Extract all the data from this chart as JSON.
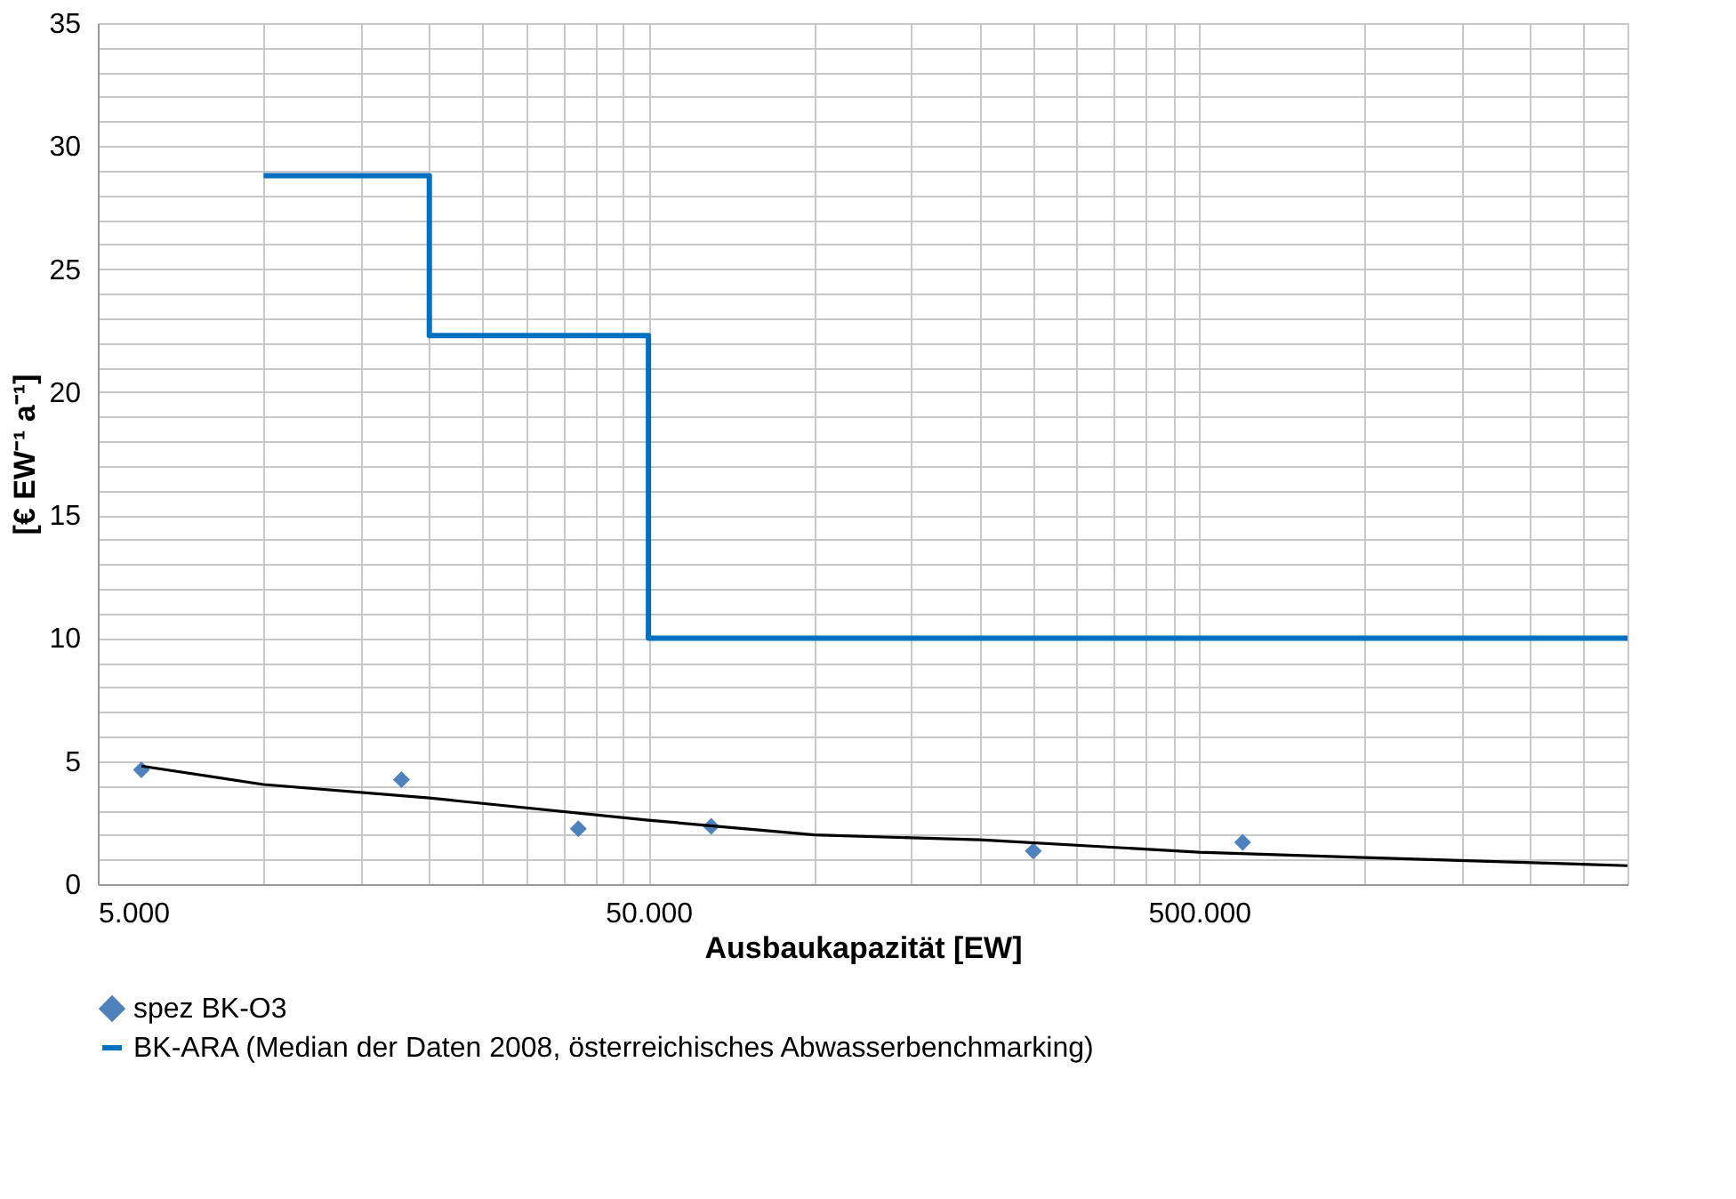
{
  "chart_data": {
    "type": "scatter",
    "xlabel": "Ausbaukapazität [EW]",
    "ylabel": "[€ EW⁻¹ a⁻¹]",
    "log": "x",
    "grid": true,
    "legend": "bottom",
    "xlim": [
      5000,
      3000000
    ],
    "ylim": [
      0,
      35
    ],
    "xticks": [
      {
        "value": 5000,
        "label": "5.000"
      },
      {
        "value": 10000,
        "label": null
      },
      {
        "value": 15000,
        "label": null
      },
      {
        "value": 20000,
        "label": null
      },
      {
        "value": 25000,
        "label": null
      },
      {
        "value": 30000,
        "label": null
      },
      {
        "value": 35000,
        "label": null
      },
      {
        "value": 40000,
        "label": null
      },
      {
        "value": 45000,
        "label": null
      },
      {
        "value": 50000,
        "label": "50.000"
      },
      {
        "value": 100000,
        "label": null
      },
      {
        "value": 150000,
        "label": null
      },
      {
        "value": 200000,
        "label": null
      },
      {
        "value": 250000,
        "label": null
      },
      {
        "value": 300000,
        "label": null
      },
      {
        "value": 350000,
        "label": null
      },
      {
        "value": 400000,
        "label": null
      },
      {
        "value": 450000,
        "label": null
      },
      {
        "value": 500000,
        "label": "500.000"
      },
      {
        "value": 1000000,
        "label": null
      },
      {
        "value": 1500000,
        "label": null
      },
      {
        "value": 2000000,
        "label": null
      },
      {
        "value": 2500000,
        "label": null
      },
      {
        "value": 3000000,
        "label": null
      }
    ],
    "yticks": [
      0,
      {
        "value": 1,
        "label": null
      },
      {
        "value": 2,
        "label": null
      },
      {
        "value": 3,
        "label": null
      },
      {
        "value": 4,
        "label": null
      },
      5,
      {
        "value": 6,
        "label": null
      },
      {
        "value": 7,
        "label": null
      },
      {
        "value": 8,
        "label": null
      },
      {
        "value": 9,
        "label": null
      },
      10,
      {
        "value": 11,
        "label": null
      },
      {
        "value": 12,
        "label": null
      },
      {
        "value": 13,
        "label": null
      },
      {
        "value": 14,
        "label": null
      },
      15,
      {
        "value": 16,
        "label": null
      },
      {
        "value": 17,
        "label": null
      },
      {
        "value": 18,
        "label": null
      },
      {
        "value": 19,
        "label": null
      },
      20,
      {
        "value": 21,
        "label": null
      },
      {
        "value": 22,
        "label": null
      },
      {
        "value": 23,
        "label": null
      },
      {
        "value": 24,
        "label": null
      },
      25,
      {
        "value": 26,
        "label": null
      },
      {
        "value": 27,
        "label": null
      },
      {
        "value": 28,
        "label": null
      },
      {
        "value": 29,
        "label": null
      },
      30,
      {
        "value": 31,
        "label": null
      },
      {
        "value": 32,
        "label": null
      },
      {
        "value": 33,
        "label": null
      },
      {
        "value": 34,
        "label": null
      },
      35
    ],
    "series": [
      {
        "name": "spez BK-O3",
        "type": "scatter",
        "marker": "diamond",
        "color": "#4f81bd",
        "x": [
          6000,
          17800,
          37300,
          65000,
          250000,
          600000
        ],
        "values": [
          4.65,
          4.25,
          2.25,
          2.35,
          1.35,
          1.7
        ]
      },
      {
        "name": "BK-ARA (Median der Daten 2008, österreichisches Abwasserbenchmarking)",
        "type": "step",
        "color": "#0070c0",
        "x": [
          10000,
          20000,
          50000,
          3000000
        ],
        "values": [
          28.8,
          22.3,
          10,
          10
        ]
      },
      {
        "type": "line",
        "color": "#000000",
        "x": [
          6000,
          10000,
          20000,
          50000,
          100000,
          200000,
          500000,
          1000000,
          3000000
        ],
        "values": [
          4.8,
          4.05,
          3.5,
          2.6,
          2.0,
          1.8,
          1.3,
          1.08,
          0.75
        ]
      }
    ]
  }
}
